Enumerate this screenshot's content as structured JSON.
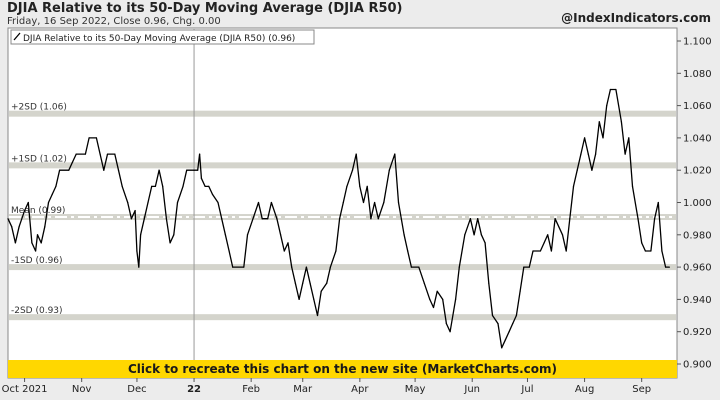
{
  "header": {
    "title": "DJIA Relative to its 50-Day Moving Average (DJIA R50)",
    "subtitle": "Friday, 16 Sep 2022, Close 0.96, Chg. 0.00",
    "brand": "@IndexIndicators.com"
  },
  "banner": {
    "text": "Click to recreate this chart on the new site (MarketCharts.com)"
  },
  "colors": {
    "line": "#000000",
    "band": "#d4d4cc",
    "mean_dash": "#ffffff",
    "banner": "#ffd700",
    "background": "#ececec",
    "plot": "#ffffff"
  },
  "chart_data": {
    "type": "line",
    "title": "DJIA Relative to its 50-Day Moving Average (DJIA R50)",
    "legend": {
      "label": "DJIA Relative to its 50-Day Moving Average (DJIA R50) (0.96)",
      "position": "top-left"
    },
    "ylim": [
      0.9,
      1.1
    ],
    "y_ticks": [
      "1.100",
      "1.080",
      "1.060",
      "1.040",
      "1.020",
      "1.000",
      "0.980",
      "0.960",
      "0.940",
      "0.920",
      "0.900"
    ],
    "x_ticks": [
      "Oct 2021",
      "Nov",
      "Dec",
      "22",
      "Feb",
      "Mar",
      "Apr",
      "May",
      "Jun",
      "Jul",
      "Aug",
      "Sep"
    ],
    "x_tick_dates": [
      "2021-10-01",
      "2021-11-01",
      "2021-12-01",
      "2022-01-01",
      "2022-02-01",
      "2022-03-01",
      "2022-04-01",
      "2022-05-01",
      "2022-06-01",
      "2022-07-01",
      "2022-08-01",
      "2022-09-01"
    ],
    "grid": false,
    "reference_lines": [
      {
        "label": "+2SD (1.06)",
        "value": 1.055,
        "style": "band"
      },
      {
        "label": "+1SD (1.02)",
        "value": 1.023,
        "style": "band"
      },
      {
        "label": "Mean (0.99)",
        "value": 0.991,
        "style": "dashed"
      },
      {
        "label": "-1SD (0.96)",
        "value": 0.96,
        "style": "band"
      },
      {
        "label": "-2SD (0.93)",
        "value": 0.929,
        "style": "band"
      }
    ],
    "vertical_markers": [
      "2022-01-01"
    ],
    "series": [
      {
        "name": "DJIA Relative to its 50-Day Moving Average (DJIA R50)",
        "points": [
          [
            "2021-09-22",
            0.99
          ],
          [
            "2021-09-24",
            0.985
          ],
          [
            "2021-09-26",
            0.975
          ],
          [
            "2021-09-28",
            0.985
          ],
          [
            "2021-10-01",
            0.995
          ],
          [
            "2021-10-03",
            1.0
          ],
          [
            "2021-10-05",
            0.975
          ],
          [
            "2021-10-07",
            0.97
          ],
          [
            "2021-10-08",
            0.98
          ],
          [
            "2021-10-10",
            0.975
          ],
          [
            "2021-10-12",
            0.985
          ],
          [
            "2021-10-14",
            1.0
          ],
          [
            "2021-10-16",
            1.005
          ],
          [
            "2021-10-18",
            1.01
          ],
          [
            "2021-10-20",
            1.02
          ],
          [
            "2021-10-25",
            1.02
          ],
          [
            "2021-10-27",
            1.025
          ],
          [
            "2021-10-29",
            1.03
          ],
          [
            "2021-11-03",
            1.03
          ],
          [
            "2021-11-05",
            1.04
          ],
          [
            "2021-11-09",
            1.04
          ],
          [
            "2021-11-11",
            1.03
          ],
          [
            "2021-11-13",
            1.02
          ],
          [
            "2021-11-15",
            1.03
          ],
          [
            "2021-11-19",
            1.03
          ],
          [
            "2021-11-21",
            1.02
          ],
          [
            "2021-11-23",
            1.01
          ],
          [
            "2021-11-26",
            1.0
          ],
          [
            "2021-11-28",
            0.99
          ],
          [
            "2021-11-30",
            0.995
          ],
          [
            "2021-12-01",
            0.97
          ],
          [
            "2021-12-02",
            0.96
          ],
          [
            "2021-12-03",
            0.98
          ],
          [
            "2021-12-05",
            0.99
          ],
          [
            "2021-12-07",
            1.0
          ],
          [
            "2021-12-09",
            1.01
          ],
          [
            "2021-12-11",
            1.01
          ],
          [
            "2021-12-13",
            1.02
          ],
          [
            "2021-12-15",
            1.01
          ],
          [
            "2021-12-17",
            0.99
          ],
          [
            "2021-12-19",
            0.975
          ],
          [
            "2021-12-21",
            0.98
          ],
          [
            "2021-12-23",
            1.0
          ],
          [
            "2021-12-26",
            1.01
          ],
          [
            "2021-12-28",
            1.02
          ],
          [
            "2022-01-01",
            1.02
          ],
          [
            "2022-01-03",
            1.02
          ],
          [
            "2022-01-04",
            1.03
          ],
          [
            "2022-01-05",
            1.015
          ],
          [
            "2022-01-07",
            1.01
          ],
          [
            "2022-01-09",
            1.01
          ],
          [
            "2022-01-11",
            1.005
          ],
          [
            "2022-01-14",
            1.0
          ],
          [
            "2022-01-16",
            0.99
          ],
          [
            "2022-01-18",
            0.98
          ],
          [
            "2022-01-20",
            0.97
          ],
          [
            "2022-01-22",
            0.96
          ],
          [
            "2022-01-28",
            0.96
          ],
          [
            "2022-01-30",
            0.98
          ],
          [
            "2022-02-02",
            0.99
          ],
          [
            "2022-02-05",
            1.0
          ],
          [
            "2022-02-07",
            0.99
          ],
          [
            "2022-02-10",
            0.99
          ],
          [
            "2022-02-12",
            1.0
          ],
          [
            "2022-02-15",
            0.99
          ],
          [
            "2022-02-17",
            0.98
          ],
          [
            "2022-02-19",
            0.97
          ],
          [
            "2022-02-21",
            0.975
          ],
          [
            "2022-02-23",
            0.96
          ],
          [
            "2022-02-25",
            0.95
          ],
          [
            "2022-02-27",
            0.94
          ],
          [
            "2022-03-01",
            0.95
          ],
          [
            "2022-03-03",
            0.96
          ],
          [
            "2022-03-05",
            0.95
          ],
          [
            "2022-03-07",
            0.94
          ],
          [
            "2022-03-09",
            0.93
          ],
          [
            "2022-03-11",
            0.945
          ],
          [
            "2022-03-14",
            0.95
          ],
          [
            "2022-03-16",
            0.96
          ],
          [
            "2022-03-19",
            0.97
          ],
          [
            "2022-03-21",
            0.99
          ],
          [
            "2022-03-23",
            1.0
          ],
          [
            "2022-03-25",
            1.01
          ],
          [
            "2022-03-28",
            1.02
          ],
          [
            "2022-03-30",
            1.03
          ],
          [
            "2022-04-01",
            1.01
          ],
          [
            "2022-04-03",
            1.0
          ],
          [
            "2022-04-05",
            1.01
          ],
          [
            "2022-04-07",
            0.99
          ],
          [
            "2022-04-09",
            1.0
          ],
          [
            "2022-04-11",
            0.99
          ],
          [
            "2022-04-14",
            1.0
          ],
          [
            "2022-04-17",
            1.02
          ],
          [
            "2022-04-20",
            1.03
          ],
          [
            "2022-04-22",
            1.0
          ],
          [
            "2022-04-25",
            0.98
          ],
          [
            "2022-04-27",
            0.97
          ],
          [
            "2022-04-29",
            0.96
          ],
          [
            "2022-05-03",
            0.96
          ],
          [
            "2022-05-06",
            0.95
          ],
          [
            "2022-05-09",
            0.94
          ],
          [
            "2022-05-11",
            0.935
          ],
          [
            "2022-05-13",
            0.945
          ],
          [
            "2022-05-16",
            0.94
          ],
          [
            "2022-05-18",
            0.925
          ],
          [
            "2022-05-20",
            0.92
          ],
          [
            "2022-05-23",
            0.94
          ],
          [
            "2022-05-25",
            0.96
          ],
          [
            "2022-05-28",
            0.98
          ],
          [
            "2022-05-31",
            0.99
          ],
          [
            "2022-06-02",
            0.98
          ],
          [
            "2022-06-04",
            0.99
          ],
          [
            "2022-06-06",
            0.98
          ],
          [
            "2022-06-08",
            0.975
          ],
          [
            "2022-06-10",
            0.95
          ],
          [
            "2022-06-12",
            0.93
          ],
          [
            "2022-06-15",
            0.925
          ],
          [
            "2022-06-17",
            0.91
          ],
          [
            "2022-06-19",
            0.915
          ],
          [
            "2022-06-21",
            0.92
          ],
          [
            "2022-06-23",
            0.925
          ],
          [
            "2022-06-25",
            0.93
          ],
          [
            "2022-06-27",
            0.945
          ],
          [
            "2022-06-29",
            0.96
          ],
          [
            "2022-07-02",
            0.96
          ],
          [
            "2022-07-04",
            0.97
          ],
          [
            "2022-07-08",
            0.97
          ],
          [
            "2022-07-10",
            0.975
          ],
          [
            "2022-07-12",
            0.98
          ],
          [
            "2022-07-14",
            0.97
          ],
          [
            "2022-07-16",
            0.99
          ],
          [
            "2022-07-20",
            0.98
          ],
          [
            "2022-07-22",
            0.97
          ],
          [
            "2022-07-24",
            0.99
          ],
          [
            "2022-07-26",
            1.01
          ],
          [
            "2022-07-28",
            1.02
          ],
          [
            "2022-07-30",
            1.03
          ],
          [
            "2022-08-01",
            1.04
          ],
          [
            "2022-08-03",
            1.03
          ],
          [
            "2022-08-05",
            1.02
          ],
          [
            "2022-08-07",
            1.03
          ],
          [
            "2022-08-09",
            1.05
          ],
          [
            "2022-08-11",
            1.04
          ],
          [
            "2022-08-13",
            1.06
          ],
          [
            "2022-08-15",
            1.07
          ],
          [
            "2022-08-18",
            1.07
          ],
          [
            "2022-08-21",
            1.05
          ],
          [
            "2022-08-23",
            1.03
          ],
          [
            "2022-08-25",
            1.04
          ],
          [
            "2022-08-27",
            1.01
          ],
          [
            "2022-08-30",
            0.99
          ],
          [
            "2022-09-01",
            0.975
          ],
          [
            "2022-09-03",
            0.97
          ],
          [
            "2022-09-06",
            0.97
          ],
          [
            "2022-09-08",
            0.99
          ],
          [
            "2022-09-10",
            1.0
          ],
          [
            "2022-09-12",
            0.97
          ],
          [
            "2022-09-14",
            0.96
          ],
          [
            "2022-09-16",
            0.96
          ]
        ]
      }
    ]
  }
}
